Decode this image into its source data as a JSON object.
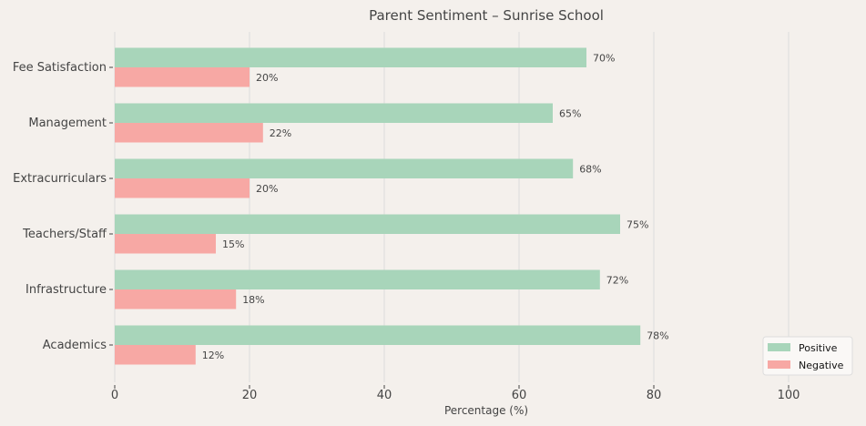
{
  "chart_data": {
    "type": "bar",
    "orientation": "horizontal",
    "title": "Parent Sentiment – Sunrise School",
    "xlabel": "Percentage (%)",
    "ylabel": "",
    "categories": [
      "Academics",
      "Infrastructure",
      "Teachers/Staff",
      "Extracurriculars",
      "Management",
      "Fee Satisfaction"
    ],
    "series": [
      {
        "name": "Positive",
        "values": [
          78,
          72,
          75,
          68,
          65,
          70
        ],
        "color": "#a8d5ba"
      },
      {
        "name": "Negative",
        "values": [
          12,
          18,
          15,
          20,
          22,
          20
        ],
        "color": "#f7a8a4"
      }
    ],
    "xticks": [
      0,
      20,
      40,
      60,
      80,
      100
    ],
    "xlim": [
      0,
      110
    ],
    "grid": "vertical",
    "legend": "bottom-right",
    "value_label_suffix": "%"
  }
}
